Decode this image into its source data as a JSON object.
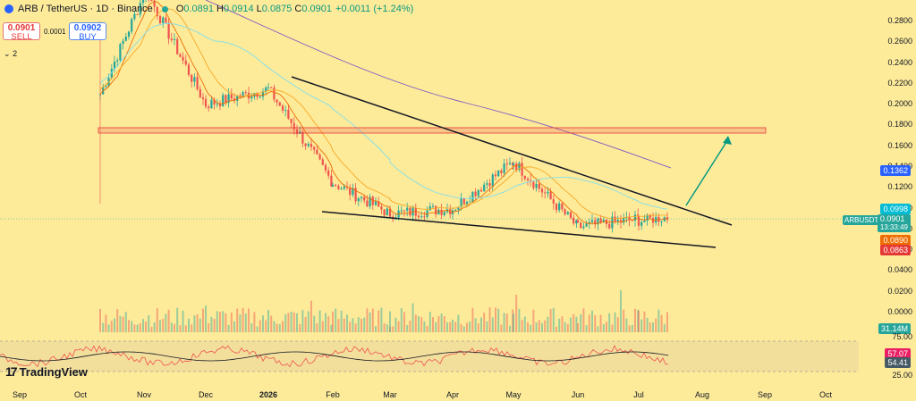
{
  "header": {
    "symbol": "ARB / TetherUS · 1D · Binance",
    "o_label": "O",
    "o": "0.0891",
    "h_label": "H",
    "h": "0.0914",
    "l_label": "L",
    "l": "0.0875",
    "c_label": "C",
    "c": "0.0901",
    "change": "+0.0011 (+1.24%)"
  },
  "order_panel": {
    "sell_price": "0.0901",
    "sell_label": "SELL",
    "buy_price": "0.0902",
    "buy_label": "BUY",
    "spread": "0.0001"
  },
  "indicators_toggle": "2",
  "price_axis": [
    "0.2800",
    "0.2600",
    "0.2400",
    "0.2200",
    "0.2000",
    "0.1800",
    "0.1600",
    "0.1400",
    "0.1200",
    "0.1000",
    "0.0800",
    "0.0600",
    "0.0400",
    "0.0200",
    "0.0000"
  ],
  "price_tags": {
    "ma200": "0.1362",
    "ma100": "0.0998",
    "pair": "ARBUSDT",
    "last": "0.0901",
    "countdown": "13:33:49",
    "ma50": "0.0890",
    "ma20": "0.0863",
    "volume": "31.14M"
  },
  "rsi_axis": {
    "upper": "75.00",
    "lower": "25.00",
    "rsi": "57.07",
    "rsi_ma": "54.41"
  },
  "time_axis": [
    "Sep",
    "Oct",
    "Nov",
    "Dec",
    "2026",
    "Feb",
    "Mar",
    "Apr",
    "May",
    "Jun",
    "Jul",
    "Aug",
    "Sep",
    "Oct"
  ],
  "logo_text": "TradingView",
  "colors": {
    "up": "#26a69a",
    "down": "#ef5350",
    "ma20": "#ef6c00",
    "ma50": "#f9a825",
    "ma100": "#80deea",
    "ma200": "#7e57c2",
    "arrow": "#089981"
  },
  "chart_data": {
    "type": "line",
    "title": "ARB / TetherUS · 1D · Binance",
    "ylim": [
      0.0,
      0.29
    ],
    "series": [
      {
        "name": "ARBUSDT",
        "x": [
          "Oct",
          "Nov",
          "Dec",
          "2026",
          "Feb",
          "Mar",
          "Apr",
          "May",
          "Jun",
          "Jul"
        ],
        "values": [
          0.21,
          0.31,
          0.2,
          0.215,
          0.125,
          0.095,
          0.1,
          0.145,
          0.082,
          0.0901
        ]
      }
    ]
  }
}
